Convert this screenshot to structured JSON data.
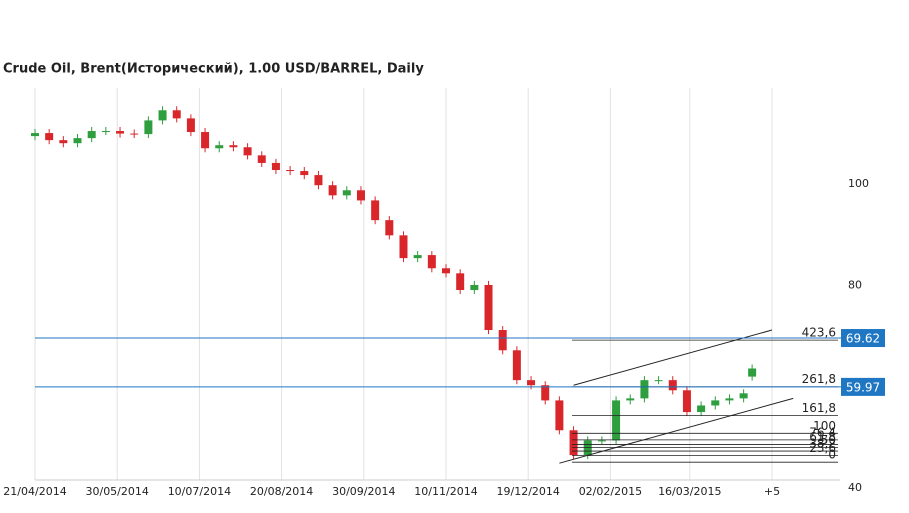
{
  "chart_data": {
    "type": "candlestick",
    "title": "Crude Oil, Brent(Исторический), 1.00 USD/BARREL, Daily",
    "x": [
      0,
      5,
      10,
      15,
      20,
      25,
      30,
      35,
      40,
      45,
      50,
      55,
      60,
      65,
      70,
      75,
      80,
      85,
      90,
      95,
      100,
      105,
      110,
      115,
      120,
      125,
      130,
      135,
      140,
      145,
      150,
      155,
      160,
      165,
      170,
      175,
      180,
      185,
      190,
      195,
      200,
      205,
      210,
      215,
      220,
      225,
      230,
      235,
      240,
      245,
      250,
      253
    ],
    "open": [
      109.5,
      110.1,
      108.7,
      108.1,
      109.1,
      110.5,
      110.5,
      110,
      109.9,
      112.6,
      114.6,
      113,
      110.3,
      107.1,
      107.7,
      107.3,
      105.7,
      104.2,
      102.8,
      102.6,
      101.8,
      99.8,
      97.8,
      98.8,
      96.8,
      92.9,
      89.9,
      85.4,
      86,
      83.4,
      82.4,
      79.1,
      80.1,
      71.2,
      67.2,
      61.3,
      60.3,
      57.3,
      51.4,
      46.5,
      49.4,
      49.4,
      57.3,
      57.7,
      61.3,
      61.3,
      59.3,
      55,
      56.3,
      57.3,
      57.7,
      62.0
    ],
    "high": [
      110.9,
      110.9,
      109.5,
      109.9,
      111.3,
      111.3,
      111.3,
      110.8,
      113.4,
      115.4,
      115.4,
      113.8,
      111.1,
      108.5,
      108.5,
      108.1,
      106.5,
      105,
      103.6,
      103.4,
      102.6,
      100.6,
      99.6,
      99.6,
      97.6,
      93.7,
      90.7,
      86.8,
      86.8,
      84.2,
      83.2,
      80.9,
      80.9,
      72,
      68,
      62.1,
      61.1,
      58.1,
      52.2,
      50.2,
      50.2,
      58.1,
      58.5,
      62.1,
      62.1,
      62.1,
      60.1,
      57.1,
      58.1,
      58.5,
      59.5,
      64.4
    ],
    "low": [
      108.7,
      107.9,
      107.3,
      107.3,
      108.3,
      109.7,
      109.2,
      109.1,
      109.1,
      111.8,
      112.2,
      109.5,
      106.3,
      106.3,
      106.5,
      104.9,
      103.4,
      102,
      101.8,
      101,
      99,
      97,
      97,
      96,
      92.1,
      89.1,
      84.6,
      84.6,
      82.6,
      81.6,
      78.3,
      78.3,
      70.4,
      66.4,
      60.5,
      59.5,
      56.5,
      50.6,
      45.7,
      45.7,
      48.6,
      48.6,
      56.5,
      56.9,
      60.5,
      58.5,
      54.2,
      54.2,
      55.5,
      56.5,
      56.9,
      61.2
    ],
    "close": [
      110.1,
      108.7,
      108.1,
      109.1,
      110.5,
      110.5,
      110,
      109.9,
      112.6,
      114.6,
      113,
      110.3,
      107.1,
      107.7,
      107.3,
      105.7,
      104.2,
      102.8,
      102.6,
      101.8,
      99.8,
      97.8,
      98.8,
      96.8,
      92.9,
      89.9,
      85.4,
      86,
      83.4,
      82.4,
      79.1,
      80.1,
      71.2,
      67.2,
      61.3,
      60.3,
      57.3,
      51.4,
      46.5,
      49.4,
      49.4,
      57.3,
      57.7,
      61.3,
      61.3,
      59.3,
      55,
      56.3,
      57.3,
      57.7,
      58.7,
      63.6
    ],
    "up_color": "#2e9e3e",
    "down_color": "#d9262b",
    "xlim": [
      0,
      284
    ],
    "ylim": [
      40,
      119
    ],
    "xticks": [
      {
        "value": 0,
        "label": "21/04/2014"
      },
      {
        "value": 29,
        "label": "30/05/2014"
      },
      {
        "value": 58,
        "label": "10/07/2014"
      },
      {
        "value": 87,
        "label": "20/08/2014"
      },
      {
        "value": 116,
        "label": "30/09/2014"
      },
      {
        "value": 145,
        "label": "10/11/2014"
      },
      {
        "value": 174,
        "label": "19/12/2014"
      },
      {
        "value": 203,
        "label": "02/02/2015"
      },
      {
        "value": 231,
        "label": "16/03/2015"
      },
      {
        "value": 260,
        "label": "+5"
      }
    ],
    "yticks": [
      40,
      80,
      100
    ],
    "grid": true,
    "price_lines": {
      "color": "#1f77c4",
      "values": [
        69.62,
        59.97
      ]
    },
    "fib_levels": [
      {
        "label": "423,6",
        "price": 69.2
      },
      {
        "label": "261,8",
        "price": 60.0
      },
      {
        "label": "161,8",
        "price": 54.3
      },
      {
        "label": "100",
        "price": 50.8
      },
      {
        "label": "76,4",
        "price": 49.5
      },
      {
        "label": "61,8",
        "price": 48.6
      },
      {
        "label": "50",
        "price": 48.0
      },
      {
        "label": "38,2",
        "price": 47.3
      },
      {
        "label": "23,6",
        "price": 46.4
      },
      {
        "label": "0",
        "price": 45.1
      }
    ],
    "trend_lines": [
      {
        "x": [
          190,
          260
        ],
        "y": [
          60.3,
          71.2
        ]
      },
      {
        "x": [
          185,
          267.5
        ],
        "y": [
          44.9,
          57.7
        ]
      }
    ]
  }
}
